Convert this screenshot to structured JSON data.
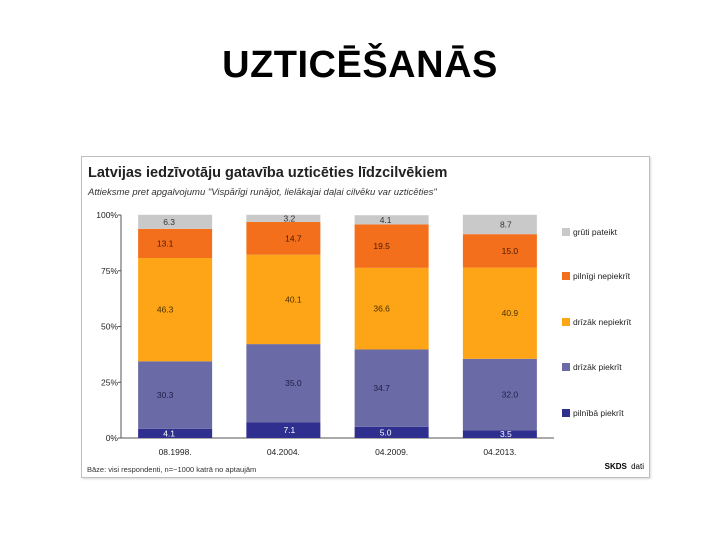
{
  "slide": {
    "title": "UZTICĒŠANĀS"
  },
  "chart_data": {
    "type": "bar",
    "stacked": true,
    "title": "Latvijas iedzīvotāju gatavība uzticēties līdzcilvēkiem",
    "subtitle": "Attieksme pret apgalvojumu \"Vispārīgi runājot, lielākajai daļai cilvēku var uzticēties\"",
    "categories": [
      "08.1998.",
      "04.2004.",
      "04.2009.",
      "04.2013."
    ],
    "ylim": [
      0,
      100
    ],
    "yticks": [
      "0%",
      "25%",
      "50%",
      "75%",
      "100%"
    ],
    "series": [
      {
        "name": "pilnībā piekrīt",
        "color": "#2f2f8f",
        "values": [
          4.1,
          7.1,
          5.0,
          3.5
        ],
        "labels": [
          "4.1",
          "7.1",
          "5.0",
          "3.5"
        ],
        "label_color": "#ffffff"
      },
      {
        "name": "drīzāk piekrīt",
        "color": "#6a6aa6",
        "values": [
          30.3,
          35.0,
          34.7,
          32.0
        ],
        "labels": [
          "30.3",
          "35.0",
          "34.7",
          "32.0"
        ],
        "label_color": "#20204a"
      },
      {
        "name": "drīzāk nepiekrīt",
        "color": "#fda516",
        "values": [
          46.3,
          40.1,
          36.6,
          40.9
        ],
        "labels": [
          "46.3",
          "40.1",
          "36.6",
          "40.9"
        ],
        "label_color": "#4a3000"
      },
      {
        "name": "pilnīgi nepiekrīt",
        "color": "#f36f1b",
        "values": [
          13.1,
          14.7,
          19.5,
          15.0
        ],
        "labels": [
          "13.1",
          "14.7",
          "19.5",
          "15.0"
        ],
        "label_color": "#4a1a00"
      },
      {
        "name": "grūti pateikt",
        "color": "#c9c9c9",
        "values": [
          6.3,
          3.2,
          4.1,
          8.7
        ],
        "labels": [
          "6.3",
          "3.2",
          "4.1",
          "8.7"
        ],
        "label_color": "#333333"
      }
    ],
    "legend_position": "right",
    "footnote": "Bāze: visi respondenti, n=~1000 katrā no aptaujām",
    "source": {
      "brand": "SKDS",
      "suffix": "dati"
    },
    "grid": false
  }
}
